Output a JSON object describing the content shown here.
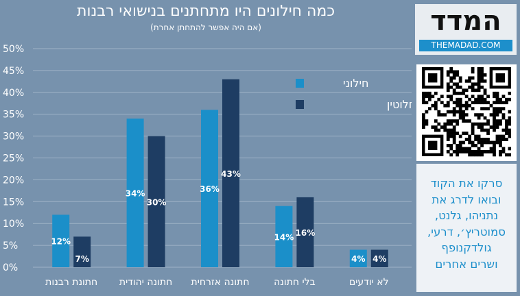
{
  "title": "כמה חילונים היו מתחתנים בנישואי רבנות",
  "subtitle": "(אם היה אפשר להתחתן אחרת)",
  "logo": {
    "text": "המדד",
    "url": "THEMADAD.COM"
  },
  "cta_lines": [
    "סרקו את הקוד",
    "ובואו לדרג את",
    "נתניהו, גלנט,",
    "סמוטריץ׳, דרעי,",
    "גולדקנופף",
    "ושרים אחרים"
  ],
  "chart_data": {
    "type": "bar",
    "categories": [
      "חתונת רבנות",
      "חתונה יהודית",
      "חתונה אזרחית",
      "בלי חתונה",
      "לא יודעים"
    ],
    "series": [
      {
        "name": "חילוני",
        "values": [
          12,
          34,
          36,
          14,
          4
        ],
        "labels": [
          "12%",
          "34%",
          "36%",
          "14%",
          "4%"
        ],
        "color": "#1b8fc9"
      },
      {
        "name": "חילוני לחלוטין",
        "values": [
          7,
          30,
          43,
          16,
          4
        ],
        "labels": [
          "7%",
          "30%",
          "43%",
          "16%",
          "4%"
        ],
        "color": "#1e3d63"
      }
    ],
    "ylim": [
      0,
      50
    ],
    "yticks": [
      "0%",
      "5%",
      "10%",
      "15%",
      "20%",
      "25%",
      "30%",
      "35%",
      "40%",
      "45%",
      "50%"
    ],
    "grid": true,
    "legend": "top-right"
  }
}
